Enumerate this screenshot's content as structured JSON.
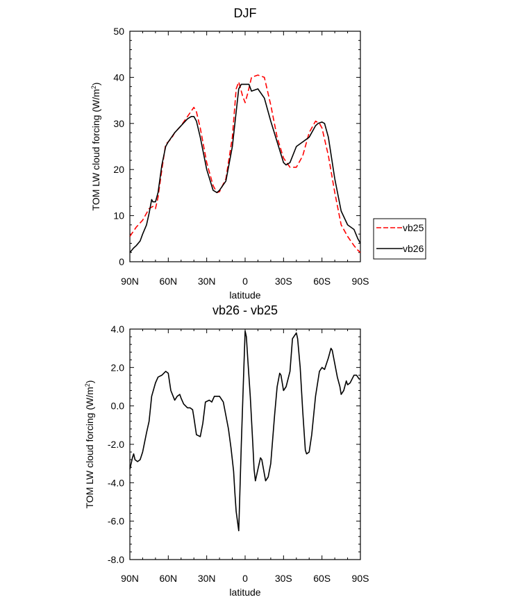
{
  "chart_data": [
    {
      "type": "line",
      "title": "DJF",
      "xlabel": "latitude",
      "ylabel": "TOM LW cloud forcing (W/m",
      "ylabel_sup": "2",
      "ylabel_end": ")",
      "xlim": [
        90,
        -90
      ],
      "ylim": [
        0,
        50
      ],
      "x_ticks": [
        {
          "value": 90,
          "label": "90N"
        },
        {
          "value": 60,
          "label": "60N"
        },
        {
          "value": 30,
          "label": "30N"
        },
        {
          "value": 0,
          "label": "0"
        },
        {
          "value": -30,
          "label": "30S"
        },
        {
          "value": -60,
          "label": "60S"
        },
        {
          "value": -90,
          "label": "90S"
        }
      ],
      "y_ticks": [
        {
          "value": 0,
          "label": "0"
        },
        {
          "value": 10,
          "label": "10"
        },
        {
          "value": 20,
          "label": "20"
        },
        {
          "value": 30,
          "label": "30"
        },
        {
          "value": 40,
          "label": "40"
        },
        {
          "value": 50,
          "label": "50"
        }
      ],
      "legend_position": "right, outside plot",
      "series": [
        {
          "name": "vb25",
          "color": "#ff0000",
          "dash": "dashed",
          "x": [
            90,
            85,
            80,
            75,
            72,
            70,
            68,
            65,
            62,
            60,
            57,
            55,
            50,
            45,
            40,
            38,
            35,
            30,
            25,
            22,
            20,
            15,
            10,
            7,
            5,
            2,
            0,
            -2,
            -5,
            -10,
            -15,
            -20,
            -25,
            -30,
            -35,
            -40,
            -45,
            -50,
            -55,
            -58,
            -60,
            -65,
            -70,
            -75,
            -80,
            -85,
            -88,
            -90
          ],
          "y": [
            5.5,
            7.5,
            9.0,
            11.5,
            12.0,
            11.5,
            14.0,
            20.0,
            25.5,
            26.0,
            27.0,
            28.0,
            29.5,
            31.5,
            33.5,
            32.5,
            29.0,
            21.5,
            16.5,
            15.0,
            15.2,
            18.0,
            27.0,
            37.5,
            39.0,
            36.0,
            34.5,
            36.5,
            40.0,
            40.5,
            40.0,
            34.0,
            27.0,
            22.5,
            20.5,
            20.5,
            23.0,
            28.0,
            30.5,
            30.0,
            29.0,
            23.0,
            15.0,
            8.0,
            5.5,
            3.5,
            2.5,
            2.0
          ]
        },
        {
          "name": "vb26",
          "color": "#000000",
          "dash": "solid",
          "x": [
            90,
            87,
            85,
            82,
            80,
            77,
            75,
            73,
            72,
            70,
            68,
            65,
            62,
            60,
            55,
            50,
            45,
            42,
            40,
            38,
            35,
            30,
            25,
            22,
            20,
            15,
            10,
            7,
            5,
            3,
            0,
            -3,
            -5,
            -10,
            -15,
            -20,
            -25,
            -30,
            -32,
            -35,
            -40,
            -45,
            -50,
            -55,
            -57,
            -60,
            -62,
            -65,
            -70,
            -75,
            -80,
            -85,
            -88,
            -90
          ],
          "y": [
            2.0,
            3.0,
            3.5,
            4.5,
            6.0,
            8.0,
            10.5,
            13.5,
            13.0,
            13.0,
            15.0,
            21.0,
            25.0,
            26.0,
            28.0,
            29.5,
            31.0,
            31.5,
            31.5,
            30.5,
            27.0,
            20.0,
            15.5,
            15.0,
            15.5,
            17.5,
            25.0,
            32.5,
            37.5,
            38.5,
            38.5,
            38.5,
            37.0,
            37.5,
            35.5,
            30.5,
            26.0,
            21.5,
            21.0,
            21.5,
            25.0,
            26.0,
            27.0,
            29.5,
            30.0,
            30.3,
            30.0,
            27.0,
            18.0,
            11.0,
            8.0,
            7.0,
            5.0,
            4.0
          ]
        }
      ]
    },
    {
      "type": "line",
      "title": "vb26 - vb25",
      "xlabel": "latitude",
      "ylabel": "TOM LW cloud forcing (W/m",
      "ylabel_sup": "2",
      "ylabel_end": ")",
      "xlim": [
        90,
        -90
      ],
      "ylim": [
        -8,
        4
      ],
      "x_ticks": [
        {
          "value": 90,
          "label": "90N"
        },
        {
          "value": 60,
          "label": "60N"
        },
        {
          "value": 30,
          "label": "30N"
        },
        {
          "value": 0,
          "label": "0"
        },
        {
          "value": -30,
          "label": "30S"
        },
        {
          "value": -60,
          "label": "60S"
        },
        {
          "value": -90,
          "label": "90S"
        }
      ],
      "y_ticks": [
        {
          "value": 4,
          "label": "4.0"
        },
        {
          "value": 2,
          "label": "2.0"
        },
        {
          "value": 0,
          "label": "0.0"
        },
        {
          "value": -2,
          "label": "-2.0"
        },
        {
          "value": -4,
          "label": "-4.0"
        },
        {
          "value": -6,
          "label": "-6.0"
        },
        {
          "value": -8,
          "label": "-8.0"
        }
      ],
      "series": [
        {
          "color": "#000000",
          "dash": "solid",
          "x": [
            90,
            88,
            87,
            86,
            84,
            82,
            80,
            77,
            75,
            73,
            70,
            68,
            65,
            62,
            60,
            58,
            55,
            53,
            51,
            50,
            48,
            45,
            43,
            41,
            40,
            38,
            35,
            33,
            31,
            28,
            26,
            24,
            20,
            17,
            15,
            13,
            11,
            9,
            8,
            7,
            5,
            3,
            1,
            0,
            -1,
            -2,
            -4,
            -6,
            -7,
            -8,
            -10,
            -12,
            -13,
            -16,
            -18,
            -20,
            -23,
            -25,
            -27,
            -28,
            -30,
            -32,
            -35,
            -37,
            -40,
            -41,
            -43,
            -45,
            -47,
            -48,
            -50,
            -52,
            -55,
            -58,
            -60,
            -62,
            -65,
            -67,
            -68,
            -70,
            -72,
            -74,
            -75,
            -77,
            -79,
            -80,
            -82,
            -85,
            -87,
            -89,
            -90
          ],
          "y": [
            -3.3,
            -2.7,
            -2.5,
            -2.8,
            -2.9,
            -2.8,
            -2.4,
            -1.4,
            -0.8,
            0.5,
            1.2,
            1.5,
            1.6,
            1.8,
            1.7,
            0.8,
            0.3,
            0.5,
            0.6,
            0.4,
            0.1,
            -0.1,
            -0.1,
            -0.2,
            -0.6,
            -1.5,
            -1.6,
            -0.9,
            0.2,
            0.3,
            0.2,
            0.5,
            0.5,
            0.2,
            -0.5,
            -1.2,
            -2.2,
            -3.4,
            -4.5,
            -5.5,
            -6.5,
            -2.0,
            2.0,
            3.9,
            3.6,
            2.5,
            0.5,
            -2.0,
            -3.3,
            -3.9,
            -3.3,
            -2.7,
            -2.8,
            -3.9,
            -3.7,
            -3.0,
            -0.5,
            1.0,
            1.7,
            1.6,
            0.8,
            1.0,
            1.8,
            3.5,
            3.8,
            3.5,
            2.0,
            -0.3,
            -2.3,
            -2.5,
            -2.4,
            -1.5,
            0.5,
            1.8,
            2.0,
            1.9,
            2.5,
            3.0,
            2.9,
            2.2,
            1.5,
            1.0,
            0.6,
            0.8,
            1.3,
            1.1,
            1.2,
            1.6,
            1.6,
            1.4,
            1.4
          ]
        }
      ]
    }
  ]
}
